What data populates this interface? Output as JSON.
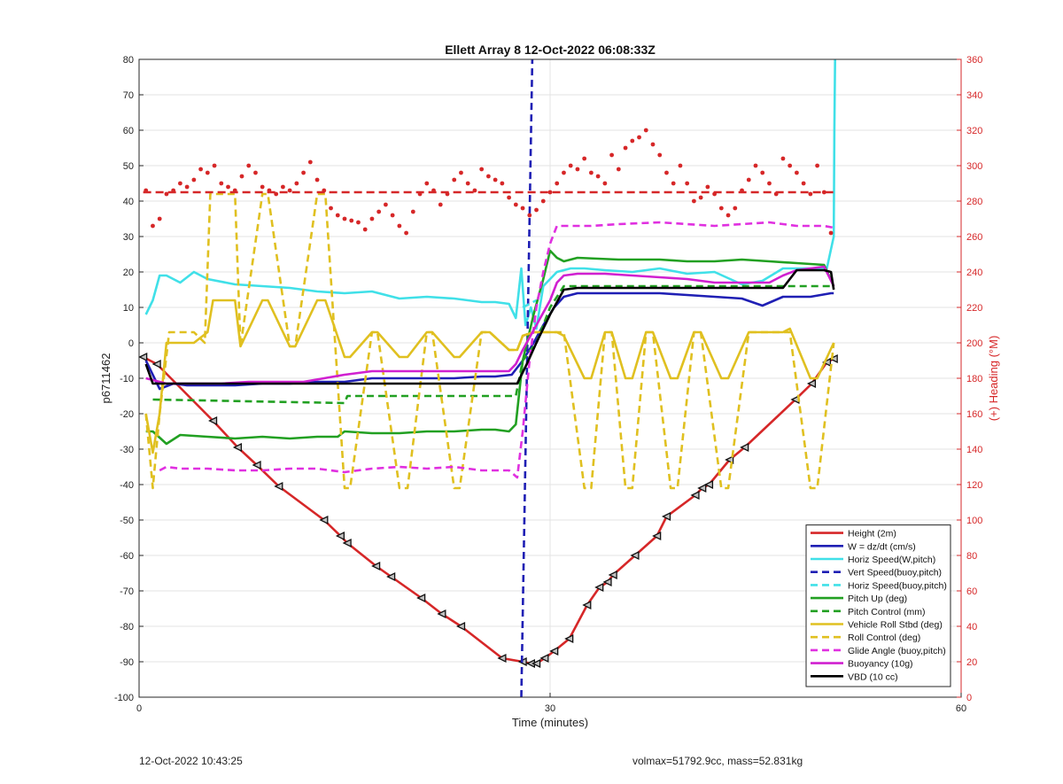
{
  "chart_data": {
    "type": "line",
    "title": "Ellett Array 8 12-Oct-2022 06:08:33Z",
    "xlabel": "Time (minutes)",
    "ylabel": "p6711462",
    "y2label": "(+) Heading (°M)",
    "xlim": [
      0,
      60
    ],
    "ylim": [
      -100,
      80
    ],
    "y2lim": [
      0,
      360
    ],
    "xticks": [
      0,
      30,
      60
    ],
    "yticks": [
      -100,
      -90,
      -80,
      -70,
      -60,
      -50,
      -40,
      -30,
      -20,
      -10,
      0,
      10,
      20,
      30,
      40,
      50,
      60,
      70,
      80
    ],
    "y2ticks": [
      0,
      20,
      40,
      60,
      80,
      100,
      120,
      140,
      160,
      180,
      200,
      220,
      240,
      260,
      280,
      300,
      320,
      340,
      360
    ],
    "grid": true,
    "legend_position": "bottom-right",
    "series": [
      {
        "name": "Height (2m)",
        "color": "#d62728",
        "style": "solid",
        "marker": "triangle-left",
        "x": [
          0.3,
          1.3,
          5.4,
          7.2,
          8.6,
          10.2,
          13.5,
          14.7,
          15.2,
          17.3,
          18.4,
          20.6,
          22.1,
          23.5,
          26.5,
          28,
          28.6,
          29,
          29.6,
          30.3,
          31.4,
          32.7,
          33.6,
          34.2,
          34.6,
          36.2,
          37.8,
          38.5,
          40.6,
          41.1,
          41.6,
          43.1,
          44.2,
          47.9,
          49.1,
          50.2,
          50.7
        ],
        "y": [
          -4,
          -6,
          -22,
          -29.5,
          -34.5,
          -40.5,
          -50,
          -54.5,
          -56.5,
          -63,
          -66,
          -72,
          -76.5,
          -80,
          -89,
          -90,
          -90.5,
          -90.5,
          -89,
          -87,
          -83.5,
          -74,
          -69,
          -67.5,
          -65.5,
          -60,
          -54.5,
          -49,
          -43,
          -41,
          -40,
          -33,
          -29.5,
          -16,
          -11.5,
          -5.5,
          -4.5
        ]
      },
      {
        "name": "W = dz/dt (cm/s)",
        "color": "#1f1fb4",
        "style": "solid",
        "x": [
          0.5,
          1.5,
          2.5,
          3.5,
          5,
          7,
          9,
          11,
          13,
          15,
          17,
          19,
          21,
          23,
          25,
          26,
          27.2,
          28,
          28.8,
          29.5,
          30.3,
          31,
          32,
          35,
          38,
          40,
          42,
          44,
          45.5,
          47,
          49,
          50.5,
          50.7
        ],
        "y": [
          -5,
          -13,
          -11.5,
          -12,
          -12,
          -12,
          -11.5,
          -11.5,
          -11,
          -11,
          -10,
          -10,
          -10,
          -10,
          -9.5,
          -9.5,
          -9,
          -5,
          0,
          5,
          10,
          13,
          14,
          14,
          14,
          13.5,
          13,
          12.5,
          10.5,
          13,
          13,
          14,
          14
        ]
      },
      {
        "name": "Horiz Speed(W,pitch)",
        "color": "#40e0e8",
        "style": "solid",
        "x": [
          0.5,
          1,
          1.5,
          2,
          3,
          4,
          5,
          7,
          9,
          11,
          13,
          15,
          17,
          19,
          21,
          23,
          25,
          26,
          27,
          27.5,
          27.9,
          28.2,
          28.6,
          29,
          29.5,
          30.5,
          31.5,
          32.5,
          34,
          36,
          38,
          40,
          42,
          44,
          45.5,
          47,
          49,
          50.2,
          50.7,
          50.75,
          50.8
        ],
        "y": [
          8,
          12,
          19,
          19,
          17,
          20,
          18,
          16.5,
          16,
          15.5,
          14.5,
          14,
          14.5,
          12.5,
          13,
          12.5,
          11.5,
          11.5,
          11,
          7,
          21,
          5,
          10,
          4,
          16,
          20,
          21,
          21,
          20.5,
          20,
          21,
          19.5,
          20,
          16.5,
          17.5,
          21,
          21,
          21,
          30,
          60,
          80
        ]
      },
      {
        "name": "Vert Speed(buoy,pitch)",
        "color": "#1f1fb4",
        "style": "dashed",
        "x": [
          27.9,
          28.7
        ],
        "y": [
          -100,
          80
        ]
      },
      {
        "name": "Horiz Speed(buoy,pitch)",
        "color": "#40e0e8",
        "style": "dashed",
        "x": [
          28,
          29
        ],
        "y": [
          10,
          12
        ]
      },
      {
        "name": "Pitch Up (deg)",
        "color": "#22a022",
        "style": "solid",
        "x": [
          0.5,
          1,
          2,
          3,
          5,
          7,
          9,
          11,
          13,
          14.5,
          15,
          17,
          19,
          21,
          23,
          25,
          26,
          27,
          27.5,
          28,
          28.8,
          29.5,
          30,
          30.5,
          31,
          32,
          35,
          38,
          40,
          42,
          44,
          46,
          48,
          50,
          50.7
        ],
        "y": [
          -25,
          -25,
          -28.5,
          -26,
          -26.5,
          -27,
          -26.5,
          -27,
          -26.5,
          -26.5,
          -25,
          -25.5,
          -25.5,
          -25,
          -25,
          -24.5,
          -24.5,
          -25,
          -23,
          -5,
          8,
          18,
          26,
          24,
          23,
          24,
          23.5,
          23.5,
          23,
          23,
          23.5,
          23,
          22.5,
          22,
          16
        ]
      },
      {
        "name": "Pitch Control (mm)",
        "color": "#22a022",
        "style": "dashed",
        "x": [
          1,
          15,
          15.2,
          27.5,
          28,
          29,
          30,
          31,
          50.7
        ],
        "y": [
          -16,
          -17,
          -15,
          -15,
          -5,
          0,
          10,
          16,
          16
        ]
      },
      {
        "name": "Vehicle Roll Stbd (deg)",
        "color": "#e0c020",
        "style": "solid",
        "x": [
          0.5,
          1,
          1.5,
          2,
          4,
          5,
          5.4,
          7,
          7.4,
          9,
          9.4,
          11,
          11.4,
          13,
          13.6,
          15,
          15.4,
          17,
          17.4,
          19,
          19.6,
          21,
          21.4,
          23,
          23.4,
          25,
          25.6,
          27,
          27.6,
          28,
          28.8,
          29.5,
          30,
          30.5,
          31,
          32.5,
          33,
          34,
          34.5,
          35.5,
          36,
          37,
          37.5,
          38.8,
          39.3,
          40.5,
          41,
          42.5,
          43,
          44.5,
          45,
          47,
          47.5,
          49,
          49.5,
          50.7
        ],
        "y": [
          -20,
          -31,
          -20,
          0,
          0,
          3,
          12,
          12,
          -1,
          12,
          12,
          -1,
          -1,
          12,
          12,
          -4,
          -4,
          3,
          3,
          -4,
          -4,
          3,
          3,
          -4,
          -4,
          3,
          3,
          -2,
          -2,
          2,
          3,
          3,
          3,
          3,
          2,
          -10,
          -10,
          3,
          3,
          -10,
          -10,
          3,
          3,
          -10,
          -10,
          3,
          3,
          -10,
          -10,
          3,
          3,
          3,
          4,
          -10,
          -10,
          0
        ]
      },
      {
        "name": "Roll Control (deg)",
        "color": "#e0c020",
        "style": "dashed",
        "x": [
          0.5,
          1,
          1.5,
          2.2,
          4,
          4.8,
          5.2,
          7,
          7.4,
          9,
          9.4,
          11,
          11.4,
          13,
          13.6,
          15,
          15.4,
          17,
          17.4,
          19,
          19.6,
          21,
          21.4,
          23,
          23.4,
          25,
          25.6,
          27,
          27.6,
          28,
          28.8,
          29.5,
          30,
          31,
          32.5,
          33,
          34,
          34.5,
          35.5,
          36,
          37,
          37.5,
          38.8,
          39.3,
          40.5,
          41,
          42.5,
          43,
          44.5,
          45,
          47,
          47.5,
          49,
          49.5,
          50.7
        ],
        "y": [
          -20,
          -41,
          -20,
          3,
          3,
          0,
          42,
          42,
          -1,
          42,
          42,
          -1,
          -1,
          42,
          42,
          -41,
          -41,
          3,
          3,
          -41,
          -41,
          3,
          3,
          -41,
          -41,
          3,
          3,
          -2,
          -2,
          2,
          3,
          3,
          3,
          3,
          -41,
          -41,
          3,
          3,
          -41,
          -41,
          3,
          3,
          -41,
          -41,
          3,
          3,
          -41,
          -41,
          3,
          3,
          3,
          3,
          -41,
          -41,
          0
        ]
      },
      {
        "name": "Glide Angle (buoy,pitch)",
        "color": "#e030e0",
        "style": "dashed",
        "x": [
          1.5,
          2,
          3,
          5,
          7,
          9,
          11,
          13,
          15,
          17,
          19,
          21,
          23,
          25,
          27,
          27.6,
          28,
          28.5,
          29,
          29.5,
          30,
          30.5,
          31,
          33,
          35,
          38,
          40,
          42,
          44,
          46,
          48,
          50,
          50.7
        ],
        "y": [
          -36,
          -35,
          -35.5,
          -35.5,
          -36,
          -36,
          -35.5,
          -35.5,
          -36.5,
          -35.5,
          -35,
          -35.5,
          -35,
          -36,
          -36,
          -38,
          -25,
          -5,
          10,
          20,
          28,
          33,
          33,
          33,
          33.5,
          34,
          33.5,
          33,
          33.5,
          34,
          33,
          33,
          32.5
        ]
      },
      {
        "name": "Buoyancy (10g)",
        "color": "#d020d0",
        "style": "solid",
        "x": [
          0.5,
          2,
          4,
          6,
          8,
          10,
          12,
          13.5,
          15,
          16,
          17,
          19,
          21,
          23,
          25,
          27,
          27.5,
          28,
          29,
          30,
          30.5,
          31,
          32,
          34,
          36,
          38,
          40,
          42,
          44,
          46,
          47,
          48,
          50,
          50.7
        ],
        "y": [
          -10,
          -11.5,
          -11.5,
          -11.5,
          -11,
          -11,
          -11,
          -10,
          -9,
          -8.5,
          -8,
          -8,
          -8,
          -8,
          -8,
          -8,
          -6,
          -2,
          5,
          12,
          17,
          19,
          19.5,
          19.5,
          19,
          18.5,
          18,
          17,
          17,
          17,
          19,
          20.5,
          21.5,
          16
        ]
      },
      {
        "name": "VBD (10 cc)",
        "color": "#000000",
        "style": "solid",
        "x": [
          0.5,
          1,
          27.6,
          28.3,
          29,
          30,
          31,
          32,
          40,
          47,
          48,
          50,
          50.5,
          50.7
        ],
        "y": [
          -6,
          -11.5,
          -11.5,
          -6,
          0,
          8,
          15,
          15.5,
          15.5,
          15.5,
          20.5,
          20.5,
          20,
          15
        ]
      }
    ],
    "heading_series": {
      "name": "Heading",
      "axis": "right",
      "marker": "dot",
      "color": "#d62728",
      "reference": 285,
      "x": [
        0.5,
        1,
        1.5,
        2,
        2.5,
        3,
        3.5,
        4,
        4.5,
        5,
        5.5,
        6,
        6.5,
        7,
        7.5,
        8,
        8.5,
        9,
        9.5,
        10,
        10.5,
        11,
        11.5,
        12,
        12.5,
        13,
        13.5,
        14,
        14.5,
        15,
        15.5,
        16,
        16.5,
        17,
        17.5,
        18,
        18.5,
        19,
        19.5,
        20,
        20.5,
        21,
        21.5,
        22,
        22.5,
        23,
        23.5,
        24,
        24.5,
        25,
        25.5,
        26,
        26.5,
        27,
        27.5,
        28,
        28.5,
        29,
        29.5,
        30,
        30.5,
        31,
        31.5,
        32,
        32.5,
        33,
        33.5,
        34,
        34.5,
        35,
        35.5,
        36,
        36.5,
        37,
        37.5,
        38,
        38.5,
        39,
        39.5,
        40,
        40.5,
        41,
        41.5,
        42,
        42.5,
        43,
        43.5,
        44,
        44.5,
        45,
        45.5,
        46,
        46.5,
        47,
        47.5,
        48,
        48.5,
        49,
        49.5,
        50,
        50.5
      ],
      "y": [
        286,
        266,
        270,
        284,
        286,
        290,
        288,
        292,
        298,
        296,
        300,
        290,
        288,
        286,
        294,
        300,
        296,
        288,
        286,
        284,
        288,
        286,
        290,
        296,
        302,
        292,
        286,
        276,
        272,
        270,
        269,
        268,
        264,
        270,
        274,
        278,
        272,
        266,
        262,
        274,
        284,
        290,
        286,
        278,
        284,
        292,
        296,
        290,
        286,
        298,
        294,
        292,
        290,
        282,
        278,
        276,
        272,
        275,
        280,
        285,
        290,
        296,
        300,
        298,
        304,
        296,
        294,
        290,
        306,
        298,
        310,
        314,
        316,
        320,
        312,
        306,
        296,
        290,
        300,
        290,
        280,
        282,
        288,
        284,
        276,
        272,
        276,
        286,
        292,
        300,
        296,
        290,
        284,
        304,
        300,
        296,
        290,
        284,
        300,
        285,
        262
      ]
    }
  },
  "footer": {
    "left": "12-Oct-2022 10:43:25",
    "right": "volmax=51792.9cc, mass=52.831kg"
  }
}
